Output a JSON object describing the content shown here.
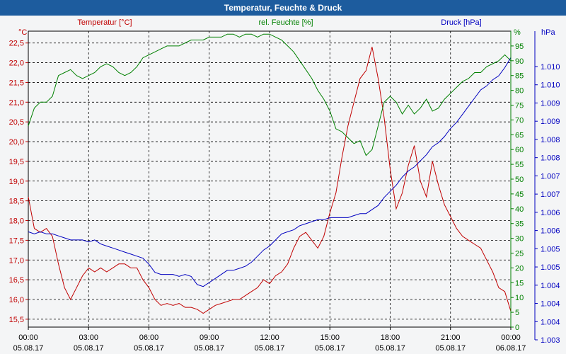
{
  "window_title": "Temperatur, Feuchte & Druck",
  "colors": {
    "temperature": "#c00000",
    "humidity": "#008000",
    "pressure": "#0000c0",
    "grid": "#000000",
    "titlebar": "#1d5c9e"
  },
  "chart_data": {
    "type": "line",
    "title": "Temperatur, Feuchte & Druck",
    "x_ticks": [
      {
        "time": "00:00",
        "date": "05.08.17"
      },
      {
        "time": "03:00",
        "date": "05.08.17"
      },
      {
        "time": "06:00",
        "date": "05.08.17"
      },
      {
        "time": "09:00",
        "date": "05.08.17"
      },
      {
        "time": "12:00",
        "date": "05.08.17"
      },
      {
        "time": "15:00",
        "date": "05.08.17"
      },
      {
        "time": "18:00",
        "date": "05.08.17"
      },
      {
        "time": "21:00",
        "date": "05.08.17"
      },
      {
        "time": "00:00",
        "date": "06.08.17"
      }
    ],
    "x_range_hours": [
      0,
      24
    ],
    "axes": {
      "temperature": {
        "label": "Temperatur [°C]",
        "unit": "°C",
        "ylim": [
          15.3,
          22.8
        ],
        "ticks": [
          "15,5",
          "16,0",
          "16,5",
          "17,0",
          "17,5",
          "18,0",
          "18,5",
          "19,0",
          "19,5",
          "20,0",
          "20,5",
          "21,0",
          "21,5",
          "22,0",
          "22,5"
        ]
      },
      "humidity": {
        "label": "rel. Feuchte [%]",
        "unit": "%",
        "ylim": [
          0,
          100
        ],
        "ticks": [
          "0",
          "5",
          "10",
          "15",
          "20",
          "25",
          "30",
          "35",
          "40",
          "45",
          "50",
          "55",
          "60",
          "65",
          "70",
          "75",
          "80",
          "85",
          "90",
          "95"
        ]
      },
      "pressure": {
        "label": "Druck [hPa]",
        "unit": "hPa",
        "ylim": [
          1003.0,
          1010.3
        ],
        "ticks": [
          "1.003",
          "1.004",
          "1.004",
          "1.004",
          "1.005",
          "1.005",
          "1.006",
          "1.006",
          "1.007",
          "1.007",
          "1.008",
          "1.008",
          "1.009",
          "1.009",
          "1.010",
          "1.010"
        ]
      }
    },
    "series": [
      {
        "name": "Temperatur [°C]",
        "axis": "temperature",
        "points": [
          [
            0.0,
            18.6
          ],
          [
            0.3,
            17.8
          ],
          [
            0.6,
            17.7
          ],
          [
            0.9,
            17.8
          ],
          [
            1.2,
            17.6
          ],
          [
            1.5,
            16.9
          ],
          [
            1.8,
            16.3
          ],
          [
            2.1,
            16.0
          ],
          [
            2.4,
            16.3
          ],
          [
            2.7,
            16.6
          ],
          [
            3.0,
            16.8
          ],
          [
            3.3,
            16.7
          ],
          [
            3.6,
            16.8
          ],
          [
            3.9,
            16.7
          ],
          [
            4.2,
            16.8
          ],
          [
            4.5,
            16.9
          ],
          [
            4.8,
            16.9
          ],
          [
            5.1,
            16.8
          ],
          [
            5.4,
            16.8
          ],
          [
            5.7,
            16.5
          ],
          [
            6.0,
            16.3
          ],
          [
            6.3,
            16.0
          ],
          [
            6.6,
            15.85
          ],
          [
            6.9,
            15.9
          ],
          [
            7.2,
            15.85
          ],
          [
            7.5,
            15.9
          ],
          [
            7.8,
            15.8
          ],
          [
            8.1,
            15.8
          ],
          [
            8.4,
            15.75
          ],
          [
            8.7,
            15.65
          ],
          [
            9.0,
            15.75
          ],
          [
            9.3,
            15.85
          ],
          [
            9.6,
            15.9
          ],
          [
            9.9,
            15.95
          ],
          [
            10.2,
            16.0
          ],
          [
            10.5,
            16.0
          ],
          [
            10.8,
            16.1
          ],
          [
            11.1,
            16.2
          ],
          [
            11.4,
            16.3
          ],
          [
            11.7,
            16.5
          ],
          [
            12.0,
            16.4
          ],
          [
            12.3,
            16.6
          ],
          [
            12.6,
            16.7
          ],
          [
            12.9,
            16.9
          ],
          [
            13.2,
            17.3
          ],
          [
            13.5,
            17.6
          ],
          [
            13.8,
            17.7
          ],
          [
            14.1,
            17.5
          ],
          [
            14.4,
            17.3
          ],
          [
            14.7,
            17.6
          ],
          [
            15.0,
            18.2
          ],
          [
            15.3,
            18.7
          ],
          [
            15.6,
            19.6
          ],
          [
            15.9,
            20.4
          ],
          [
            16.2,
            21.0
          ],
          [
            16.5,
            21.6
          ],
          [
            16.8,
            21.8
          ],
          [
            17.1,
            22.4
          ],
          [
            17.4,
            21.6
          ],
          [
            17.7,
            20.6
          ],
          [
            18.0,
            19.3
          ],
          [
            18.3,
            18.3
          ],
          [
            18.6,
            18.7
          ],
          [
            18.9,
            19.4
          ],
          [
            19.2,
            19.9
          ],
          [
            19.5,
            19.0
          ],
          [
            19.8,
            18.6
          ],
          [
            20.1,
            19.5
          ],
          [
            20.4,
            18.9
          ],
          [
            20.7,
            18.4
          ],
          [
            21.0,
            18.1
          ],
          [
            21.3,
            17.8
          ],
          [
            21.6,
            17.6
          ],
          [
            21.9,
            17.5
          ],
          [
            22.2,
            17.4
          ],
          [
            22.5,
            17.3
          ],
          [
            22.8,
            17.0
          ],
          [
            23.1,
            16.7
          ],
          [
            23.4,
            16.3
          ],
          [
            23.7,
            16.2
          ],
          [
            24.0,
            15.7
          ]
        ]
      },
      {
        "name": "rel. Feuchte [%]",
        "axis": "humidity",
        "points": [
          [
            0.0,
            68
          ],
          [
            0.3,
            74
          ],
          [
            0.6,
            76
          ],
          [
            0.9,
            76
          ],
          [
            1.2,
            78
          ],
          [
            1.5,
            85
          ],
          [
            1.8,
            86
          ],
          [
            2.1,
            87
          ],
          [
            2.4,
            85
          ],
          [
            2.7,
            84
          ],
          [
            3.0,
            85
          ],
          [
            3.3,
            86
          ],
          [
            3.6,
            88
          ],
          [
            3.9,
            89
          ],
          [
            4.2,
            88
          ],
          [
            4.5,
            86
          ],
          [
            4.8,
            85
          ],
          [
            5.1,
            86
          ],
          [
            5.4,
            88
          ],
          [
            5.7,
            91
          ],
          [
            6.0,
            92
          ],
          [
            6.3,
            93
          ],
          [
            6.6,
            94
          ],
          [
            6.9,
            95
          ],
          [
            7.2,
            95
          ],
          [
            7.5,
            95
          ],
          [
            7.8,
            96
          ],
          [
            8.1,
            97
          ],
          [
            8.4,
            97
          ],
          [
            8.7,
            97
          ],
          [
            9.0,
            98
          ],
          [
            9.3,
            98
          ],
          [
            9.6,
            98
          ],
          [
            9.9,
            99
          ],
          [
            10.2,
            99
          ],
          [
            10.5,
            98
          ],
          [
            10.8,
            99
          ],
          [
            11.1,
            99
          ],
          [
            11.4,
            98
          ],
          [
            11.7,
            99
          ],
          [
            12.0,
            99
          ],
          [
            12.3,
            98
          ],
          [
            12.6,
            97
          ],
          [
            12.9,
            95
          ],
          [
            13.2,
            93
          ],
          [
            13.5,
            90
          ],
          [
            13.8,
            87
          ],
          [
            14.1,
            84
          ],
          [
            14.4,
            80
          ],
          [
            14.7,
            77
          ],
          [
            15.0,
            73
          ],
          [
            15.3,
            67
          ],
          [
            15.6,
            66
          ],
          [
            15.9,
            64
          ],
          [
            16.2,
            62
          ],
          [
            16.5,
            63
          ],
          [
            16.8,
            58
          ],
          [
            17.1,
            60
          ],
          [
            17.4,
            68
          ],
          [
            17.7,
            76
          ],
          [
            18.0,
            78
          ],
          [
            18.3,
            76
          ],
          [
            18.6,
            72
          ],
          [
            18.9,
            75
          ],
          [
            19.2,
            72
          ],
          [
            19.5,
            74
          ],
          [
            19.8,
            77
          ],
          [
            20.1,
            73
          ],
          [
            20.4,
            74
          ],
          [
            20.7,
            77
          ],
          [
            21.0,
            79
          ],
          [
            21.3,
            81
          ],
          [
            21.6,
            83
          ],
          [
            21.9,
            84
          ],
          [
            22.2,
            86
          ],
          [
            22.5,
            86
          ],
          [
            22.8,
            88
          ],
          [
            23.1,
            89
          ],
          [
            23.4,
            90
          ],
          [
            23.7,
            92
          ],
          [
            24.0,
            90
          ]
        ]
      },
      {
        "name": "Druck [hPa]",
        "axis": "pressure",
        "points": [
          [
            0.0,
            1005.35
          ],
          [
            0.3,
            1005.3
          ],
          [
            0.6,
            1005.35
          ],
          [
            0.9,
            1005.3
          ],
          [
            1.2,
            1005.3
          ],
          [
            1.5,
            1005.25
          ],
          [
            1.8,
            1005.2
          ],
          [
            2.1,
            1005.15
          ],
          [
            2.4,
            1005.15
          ],
          [
            2.7,
            1005.15
          ],
          [
            3.0,
            1005.1
          ],
          [
            3.3,
            1005.15
          ],
          [
            3.6,
            1005.05
          ],
          [
            3.9,
            1005.0
          ],
          [
            4.2,
            1004.95
          ],
          [
            4.5,
            1004.9
          ],
          [
            4.8,
            1004.85
          ],
          [
            5.1,
            1004.8
          ],
          [
            5.4,
            1004.75
          ],
          [
            5.7,
            1004.7
          ],
          [
            6.0,
            1004.55
          ],
          [
            6.3,
            1004.35
          ],
          [
            6.6,
            1004.3
          ],
          [
            6.9,
            1004.3
          ],
          [
            7.2,
            1004.3
          ],
          [
            7.5,
            1004.25
          ],
          [
            7.8,
            1004.3
          ],
          [
            8.1,
            1004.25
          ],
          [
            8.4,
            1004.05
          ],
          [
            8.7,
            1004.0
          ],
          [
            9.0,
            1004.1
          ],
          [
            9.3,
            1004.2
          ],
          [
            9.6,
            1004.3
          ],
          [
            9.9,
            1004.4
          ],
          [
            10.2,
            1004.4
          ],
          [
            10.5,
            1004.45
          ],
          [
            10.8,
            1004.5
          ],
          [
            11.1,
            1004.6
          ],
          [
            11.4,
            1004.75
          ],
          [
            11.7,
            1004.9
          ],
          [
            12.0,
            1005.0
          ],
          [
            12.3,
            1005.15
          ],
          [
            12.6,
            1005.3
          ],
          [
            12.9,
            1005.35
          ],
          [
            13.2,
            1005.4
          ],
          [
            13.5,
            1005.5
          ],
          [
            13.8,
            1005.55
          ],
          [
            14.1,
            1005.6
          ],
          [
            14.4,
            1005.65
          ],
          [
            14.7,
            1005.65
          ],
          [
            15.0,
            1005.7
          ],
          [
            15.3,
            1005.7
          ],
          [
            15.6,
            1005.7
          ],
          [
            15.9,
            1005.7
          ],
          [
            16.2,
            1005.75
          ],
          [
            16.5,
            1005.8
          ],
          [
            16.8,
            1005.8
          ],
          [
            17.1,
            1005.9
          ],
          [
            17.4,
            1006.0
          ],
          [
            17.7,
            1006.2
          ],
          [
            18.0,
            1006.35
          ],
          [
            18.3,
            1006.5
          ],
          [
            18.6,
            1006.7
          ],
          [
            18.9,
            1006.85
          ],
          [
            19.2,
            1006.95
          ],
          [
            19.5,
            1007.1
          ],
          [
            19.8,
            1007.25
          ],
          [
            20.1,
            1007.45
          ],
          [
            20.4,
            1007.55
          ],
          [
            20.7,
            1007.7
          ],
          [
            21.0,
            1007.9
          ],
          [
            21.3,
            1008.05
          ],
          [
            21.6,
            1008.25
          ],
          [
            21.9,
            1008.45
          ],
          [
            22.2,
            1008.65
          ],
          [
            22.5,
            1008.85
          ],
          [
            22.8,
            1008.95
          ],
          [
            23.1,
            1009.1
          ],
          [
            23.4,
            1009.2
          ],
          [
            23.7,
            1009.4
          ],
          [
            24.0,
            1009.65
          ]
        ]
      }
    ]
  }
}
